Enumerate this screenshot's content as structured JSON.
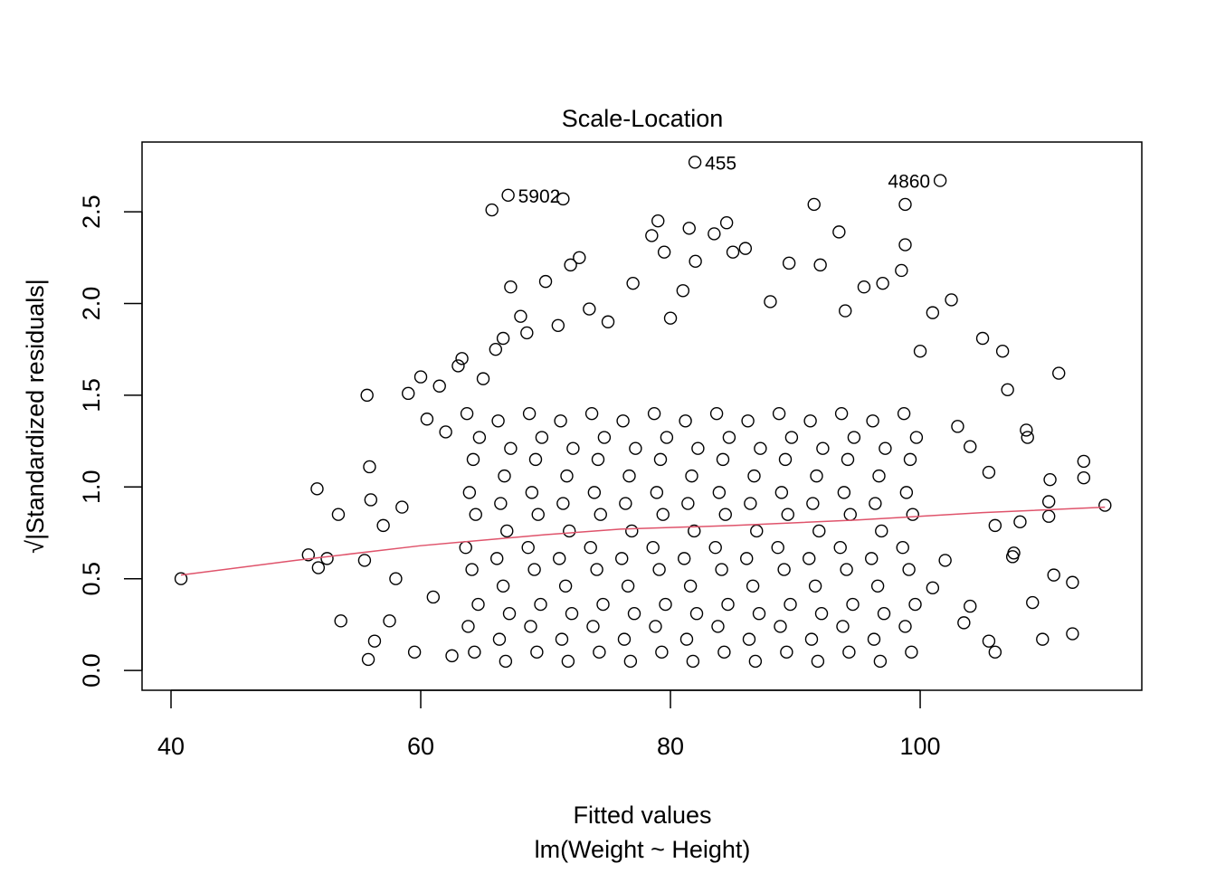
{
  "chart_data": {
    "type": "scatter",
    "title": "Scale-Location",
    "xlabel": "Fitted values",
    "subtitle": "lm(Weight ~ Height)",
    "ylabel": "√|Standardized residuals|",
    "xlim": [
      37.68,
      117.75
    ],
    "ylim": [
      -0.108,
      2.88
    ],
    "xticks": [
      40,
      60,
      80,
      100
    ],
    "yticks": [
      {
        "value": 0,
        "label": "0.0"
      },
      {
        "value": 0.5,
        "label": "0.5"
      },
      {
        "value": 1,
        "label": "1.0"
      },
      {
        "value": 1.5,
        "label": "1.5"
      },
      {
        "value": 2,
        "label": "2.0"
      },
      {
        "value": 2.5,
        "label": "2.5"
      }
    ],
    "point_color": "#000000",
    "x": [
      64.3,
      63.8,
      64.6,
      64.1,
      63.6,
      64.4,
      63.9,
      64.2,
      64.7,
      63.7,
      66.8,
      66.3,
      67.1,
      66.6,
      66.1,
      66.9,
      66.4,
      66.7,
      67.2,
      66.2,
      69.3,
      68.8,
      69.6,
      69.1,
      68.6,
      69.4,
      68.9,
      69.2,
      69.7,
      68.7,
      71.8,
      71.3,
      72.1,
      71.6,
      71.1,
      71.9,
      71.4,
      71.7,
      72.2,
      71.2,
      74.3,
      73.8,
      74.6,
      74.1,
      73.6,
      74.4,
      73.9,
      74.2,
      74.7,
      73.7,
      76.8,
      76.3,
      77.1,
      76.6,
      76.1,
      76.9,
      76.4,
      76.7,
      77.2,
      76.2,
      79.3,
      78.8,
      79.6,
      79.1,
      78.6,
      79.4,
      78.9,
      79.2,
      79.7,
      78.7,
      81.8,
      81.3,
      82.1,
      81.6,
      81.1,
      81.9,
      81.4,
      81.7,
      82.2,
      81.2,
      84.3,
      83.8,
      84.6,
      84.1,
      83.6,
      84.4,
      83.9,
      84.2,
      84.7,
      83.7,
      86.8,
      86.3,
      87.1,
      86.6,
      86.1,
      86.9,
      86.4,
      86.7,
      87.2,
      86.2,
      89.3,
      88.8,
      89.6,
      89.1,
      88.6,
      89.4,
      88.9,
      89.2,
      89.7,
      88.7,
      91.8,
      91.3,
      92.1,
      91.6,
      91.1,
      91.9,
      91.4,
      91.7,
      92.2,
      91.2,
      94.3,
      93.8,
      94.6,
      94.1,
      93.6,
      94.4,
      93.9,
      94.2,
      94.7,
      93.7,
      96.8,
      96.3,
      97.1,
      96.6,
      96.1,
      96.9,
      96.4,
      96.7,
      97.2,
      96.2,
      99.3,
      98.8,
      99.6,
      99.1,
      98.6,
      99.4,
      98.9,
      99.2,
      99.7,
      98.7,
      40.8,
      51,
      51.7,
      51.8,
      52.5,
      53.4,
      53.6,
      55.5,
      55.7,
      55.8,
      55.9,
      56,
      56.3,
      57,
      57.5,
      58,
      58.5,
      59,
      59.5,
      60,
      60.5,
      61,
      61.5,
      62,
      62.5,
      63,
      63.3,
      65,
      65.7,
      66,
      66.6,
      67,
      67.2,
      68,
      68.5,
      70,
      71,
      71.4,
      72,
      72.7,
      73.5,
      75,
      77,
      78.5,
      79,
      79.5,
      80,
      81,
      81.5,
      81.96,
      82,
      83.5,
      84.5,
      85,
      86,
      88,
      89.5,
      91.5,
      92,
      93.5,
      94,
      95.5,
      97,
      98.5,
      98.8,
      98.8,
      100,
      101,
      101.6,
      102.5,
      103,
      104,
      105,
      105.5,
      106,
      106.6,
      107,
      107.5,
      107.4,
      108,
      108.5,
      108.6,
      109,
      110.3,
      110.3,
      110.4,
      110.7,
      109.8,
      111.1,
      112.2,
      112.2,
      113.1,
      113.1,
      114.8,
      104,
      105.5,
      106,
      103.5,
      102,
      101
    ],
    "y": [
      0.1,
      0.24,
      0.36,
      0.55,
      0.67,
      0.85,
      0.97,
      1.15,
      1.27,
      1.4,
      0.05,
      0.17,
      0.31,
      0.46,
      0.61,
      0.76,
      0.91,
      1.06,
      1.21,
      1.36,
      0.1,
      0.24,
      0.36,
      0.55,
      0.67,
      0.85,
      0.97,
      1.15,
      1.27,
      1.4,
      0.05,
      0.17,
      0.31,
      0.46,
      0.61,
      0.76,
      0.91,
      1.06,
      1.21,
      1.36,
      0.1,
      0.24,
      0.36,
      0.55,
      0.67,
      0.85,
      0.97,
      1.15,
      1.27,
      1.4,
      0.05,
      0.17,
      0.31,
      0.46,
      0.61,
      0.76,
      0.91,
      1.06,
      1.21,
      1.36,
      0.1,
      0.24,
      0.36,
      0.55,
      0.67,
      0.85,
      0.97,
      1.15,
      1.27,
      1.4,
      0.05,
      0.17,
      0.31,
      0.46,
      0.61,
      0.76,
      0.91,
      1.06,
      1.21,
      1.36,
      0.1,
      0.24,
      0.36,
      0.55,
      0.67,
      0.85,
      0.97,
      1.15,
      1.27,
      1.4,
      0.05,
      0.17,
      0.31,
      0.46,
      0.61,
      0.76,
      0.91,
      1.06,
      1.21,
      1.36,
      0.1,
      0.24,
      0.36,
      0.55,
      0.67,
      0.85,
      0.97,
      1.15,
      1.27,
      1.4,
      0.05,
      0.17,
      0.31,
      0.46,
      0.61,
      0.76,
      0.91,
      1.06,
      1.21,
      1.36,
      0.1,
      0.24,
      0.36,
      0.55,
      0.67,
      0.85,
      0.97,
      1.15,
      1.27,
      1.4,
      0.05,
      0.17,
      0.31,
      0.46,
      0.61,
      0.76,
      0.91,
      1.06,
      1.21,
      1.36,
      0.1,
      0.24,
      0.36,
      0.55,
      0.67,
      0.85,
      0.97,
      1.15,
      1.27,
      1.4,
      0.5,
      0.63,
      0.99,
      0.56,
      0.61,
      0.85,
      0.27,
      0.6,
      1.5,
      0.06,
      1.11,
      0.93,
      0.16,
      0.79,
      0.27,
      0.5,
      0.89,
      1.51,
      0.1,
      1.6,
      1.37,
      0.4,
      1.55,
      1.3,
      0.08,
      1.66,
      1.7,
      1.59,
      2.51,
      1.75,
      1.81,
      2.59,
      2.09,
      1.93,
      1.84,
      2.12,
      1.88,
      2.57,
      2.21,
      2.25,
      1.97,
      1.9,
      2.11,
      2.37,
      2.45,
      2.28,
      1.92,
      2.07,
      2.41,
      2.77,
      2.23,
      2.38,
      2.44,
      2.28,
      2.3,
      2.01,
      2.22,
      2.54,
      2.21,
      2.39,
      1.96,
      2.09,
      2.11,
      2.18,
      2.54,
      2.32,
      1.74,
      1.95,
      2.67,
      2.02,
      1.33,
      1.22,
      1.81,
      1.08,
      0.79,
      1.74,
      1.53,
      0.64,
      0.62,
      0.81,
      1.31,
      1.27,
      0.37,
      0.92,
      0.84,
      1.04,
      0.52,
      0.17,
      1.62,
      0.48,
      0.2,
      1.14,
      1.05,
      0.9,
      0.35,
      0.16,
      0.1,
      0.26,
      0.6,
      0.45
    ],
    "smooth": {
      "color": "#DF536B",
      "x": [
        40.8,
        50,
        60,
        70,
        76,
        85,
        95,
        105,
        114.8
      ],
      "y": [
        0.52,
        0.6,
        0.68,
        0.74,
        0.77,
        0.79,
        0.82,
        0.86,
        0.89
      ]
    },
    "annotations": [
      {
        "label": "455",
        "x": 81.96,
        "y": 2.77,
        "side": "right"
      },
      {
        "label": "5902",
        "x": 67,
        "y": 2.59,
        "side": "right"
      },
      {
        "label": "4860",
        "x": 101.6,
        "y": 2.67,
        "side": "left"
      }
    ]
  }
}
